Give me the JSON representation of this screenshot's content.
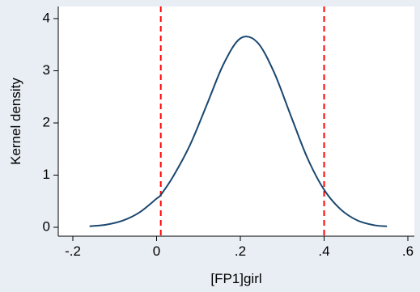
{
  "chart_data": {
    "type": "line",
    "title": "",
    "xlabel": "[FP1]girl",
    "ylabel": "Kernel density",
    "xlim": [
      -0.2,
      0.6
    ],
    "ylim": [
      0,
      4
    ],
    "x_ticks": [
      -0.2,
      0,
      0.2,
      0.4,
      0.6
    ],
    "x_tick_labels": [
      "-.2",
      "0",
      ".2",
      ".4",
      ".6"
    ],
    "y_ticks": [
      0,
      1,
      2,
      3,
      4
    ],
    "y_tick_labels": [
      "0",
      "1",
      "2",
      "3",
      "4"
    ],
    "grid": false,
    "series": [
      {
        "x": [
          -0.16,
          -0.12,
          -0.08,
          -0.04,
          0.0,
          0.01,
          0.04,
          0.08,
          0.12,
          0.16,
          0.2,
          0.24,
          0.28,
          0.32,
          0.36,
          0.4,
          0.44,
          0.48,
          0.52,
          0.55
        ],
        "values": [
          0.02,
          0.05,
          0.13,
          0.29,
          0.55,
          0.62,
          0.98,
          1.58,
          2.35,
          3.13,
          3.62,
          3.55,
          2.98,
          2.15,
          1.33,
          0.72,
          0.34,
          0.13,
          0.04,
          0.02
        ],
        "color": "#1a476f"
      }
    ],
    "reference_lines": [
      {
        "x": 0.01,
        "color": "#ff0000",
        "style": "dashed"
      },
      {
        "x": 0.4,
        "color": "#ff0000",
        "style": "dashed"
      }
    ],
    "colors": {
      "background": "#e8eef3",
      "plot_background": "#ffffff"
    }
  }
}
